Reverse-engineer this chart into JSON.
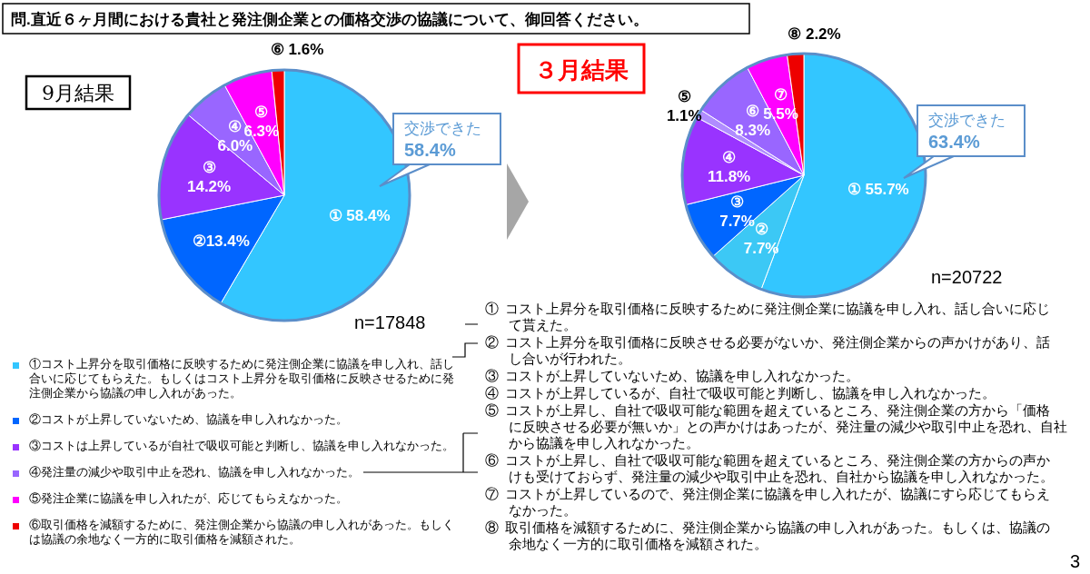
{
  "chart_data": [
    {
      "type": "pie",
      "title": "問.直近６ヶ月間における貴社と発注側企業との価格交渉の協議について、御回答ください。",
      "subtitle": "9月結果",
      "categories": [
        "①コスト上昇分を取引価格に反映するために発注側企業に協議を申し入れ、話し合いに応じてもらえた。もしくはコスト上昇分を取引価格に反映させるために発注側企業から協議の申し入れがあった。",
        "②コストが上昇していないため、協議を申し入れなかった。",
        "③コストは上昇しているが自社で吸収可能と判断し、協議を申し入れなかった。",
        "④発注量の減少や取引中止を恐れ、協議を申し入れなかった。",
        "⑤発注企業に協議を申し入れたが、応じてもらえなかった。",
        "⑥取引価格を減額するために、発注側企業から協議の申し入れがあった。もしくは協議の余地なく一方的に取引価格を減額された。"
      ],
      "values": [
        58.4,
        13.4,
        14.2,
        6.0,
        6.3,
        1.6
      ],
      "colors": [
        "#33c6ff",
        "#0066ff",
        "#9933ff",
        "#9966ff",
        "#ff00ff",
        "#ee0000"
      ],
      "value_labels": [
        "① 58.4%",
        "②13.4%",
        "③\n14.2%",
        "④\n6.0%",
        "⑤\n6.3%",
        "⑥ 1.6%"
      ],
      "legend": "bottom left",
      "annotations": [
        "交渉できた\n58.4%",
        "n=17848"
      ]
    },
    {
      "type": "pie",
      "title": "３月結果",
      "categories": [
        "①",
        "②",
        "③",
        "④",
        "⑤",
        "⑥",
        "⑦",
        "⑧"
      ],
      "values": [
        55.7,
        7.7,
        7.7,
        11.8,
        1.1,
        8.3,
        5.5,
        2.2
      ],
      "colors": [
        "#33c6ff",
        "#3cc8f5",
        "#0066ff",
        "#9933ff",
        "#b08cff",
        "#9966ff",
        "#ff00ff",
        "#ee0000"
      ],
      "value_labels": [
        "55.7%",
        "7.7%",
        "7.7%",
        "11.8%",
        "1.1%",
        "8.3%",
        "5.5%",
        "2.2%"
      ],
      "annotations": [
        "交渉できた\n63.4%",
        "n=20722",
        "3",
        "① コスト上昇分を取引価格に反映するために発注側企業に協議を申し入れ、話し合いに応じて貰えた。",
        "② コスト上昇分を取引価格に反映させる必要がないか、発注側企業からの声かけがあり、話し合いが行われた。",
        "③ コストが上昇していないため、協議を申し入れなかった。",
        "④ コストが上昇しているが、自社で吸収可能と判断し、協議を申し入れなかった。",
        "⑤ コストが上昇し、自社で吸収可能な範囲を超えているところ、発注側企業の方から「価格に反映させる必要が無いか」との声かけはあったが、発注量の減少や取引中止を恐れ、自社から協議を申し入れなかった。",
        "⑥ コストが上昇し、自社で吸収可能な範囲を超えているところ、発注側企業の方からの声かけも受けておらず、発注量の減少や取引中止を恐れ、自社から協議を申し入れなかった。",
        "⑦ コストが上昇しているので、発注側企業に協議を申し入れたが、協議にすら応じてもらえなかった。",
        "⑧ 取引価格を減額するために、発注側企業から協議の申し入れがあった。もしくは、協議の余地なく一方的に取引価格を減額された。"
      ]
    }
  ]
}
